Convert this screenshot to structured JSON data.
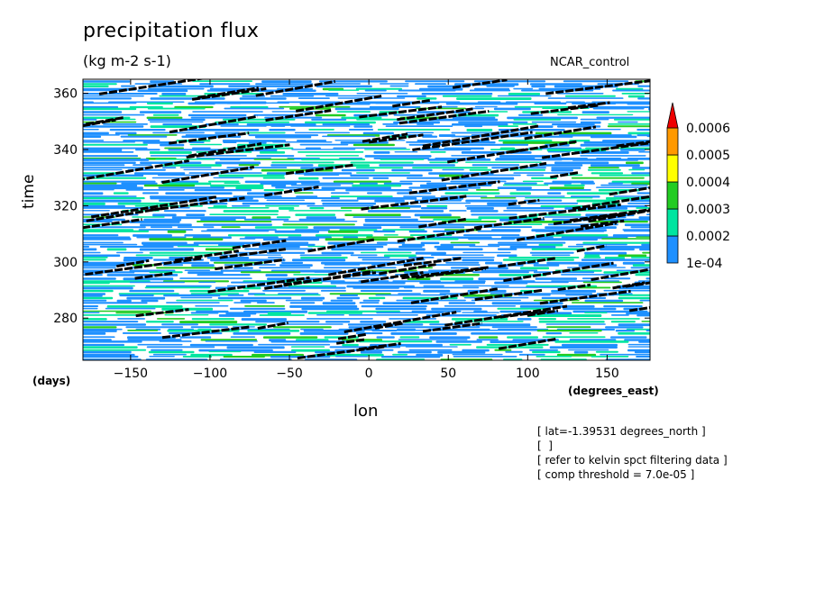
{
  "chart_data": {
    "type": "heatmap",
    "title": "precipitation flux",
    "units": "(kg m-2 s-1)",
    "run_label": "NCAR_control",
    "xlabel": "lon",
    "ylabel": "time",
    "x_unit_label": "(degrees_east)",
    "y_unit_label": "(days)",
    "xlim": [
      -180,
      177
    ],
    "ylim": [
      265,
      365
    ],
    "xticks": [
      -150,
      -100,
      -50,
      0,
      50,
      100,
      150
    ],
    "yticks": [
      280,
      300,
      320,
      340,
      360
    ],
    "colorbar": {
      "levels": [
        "1e-04",
        "0.0002",
        "0.0003",
        "0.0004",
        "0.0005",
        "0.0006"
      ],
      "colors": [
        "#1e90ff",
        "#00e5a0",
        "#22cc22",
        "#ffff00",
        "#ff9900",
        "#ee0000"
      ]
    },
    "field_colors": {
      "background": "#ffffff",
      "blue": "#1e90ff",
      "teal": "#00e5a0",
      "green": "#22cc22",
      "overlay": "#000000"
    },
    "kelvin_wave_overlay": "black dashed eastward-propagating contours",
    "notes": [
      "[ lat=-1.39531 degrees_north ]",
      "[  ]",
      "[ refer to kelvin spct filtering data ]",
      "[ comp threshold = 7.0e-05 ]"
    ]
  }
}
